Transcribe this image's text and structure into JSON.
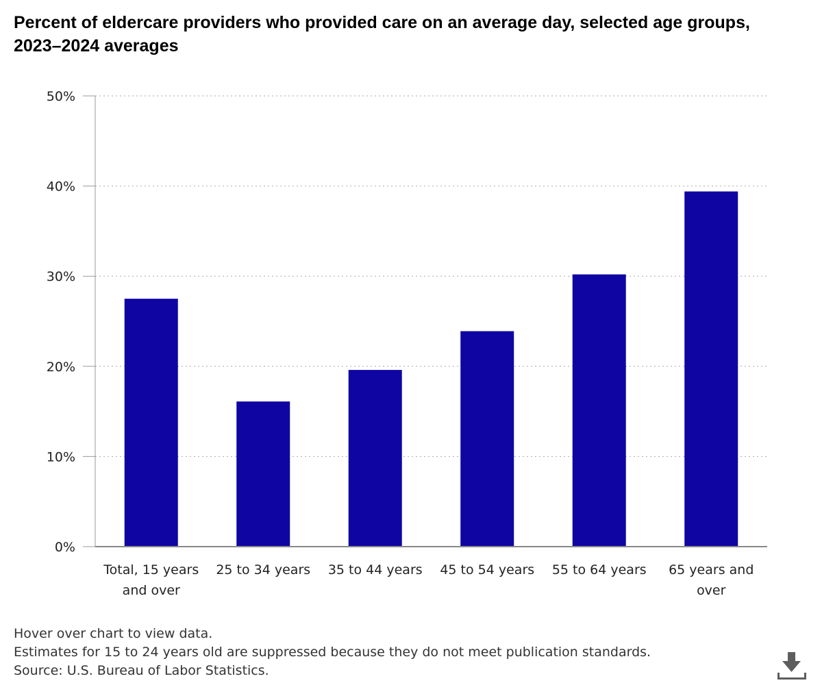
{
  "title": "Percent of eldercare providers who provided care on an average day, selected age groups, 2023–2024 averages",
  "chart_data": {
    "type": "bar",
    "title": "Percent of eldercare providers who provided care on an average day, selected age groups, 2023–2024 averages",
    "categories": [
      [
        "Total, 15 years",
        "and over"
      ],
      [
        "25 to 34 years"
      ],
      [
        "35 to 44 years"
      ],
      [
        "45 to 54 years"
      ],
      [
        "55 to 64 years"
      ],
      [
        "65 years and",
        "over"
      ]
    ],
    "values": [
      27.5,
      16.1,
      19.6,
      23.9,
      30.2,
      39.4
    ],
    "ylim": [
      0,
      50
    ],
    "yticks": [
      "0%",
      "10%",
      "20%",
      "30%",
      "40%",
      "50%"
    ],
    "grid": true,
    "bar_color": "#0f05a3"
  },
  "notes": [
    "Hover over chart to view data.",
    "Estimates for 15 to 24 years old are suppressed because they do not meet publication standards.",
    "Source: U.S. Bureau of Labor Statistics."
  ],
  "download_icon": "download-icon"
}
